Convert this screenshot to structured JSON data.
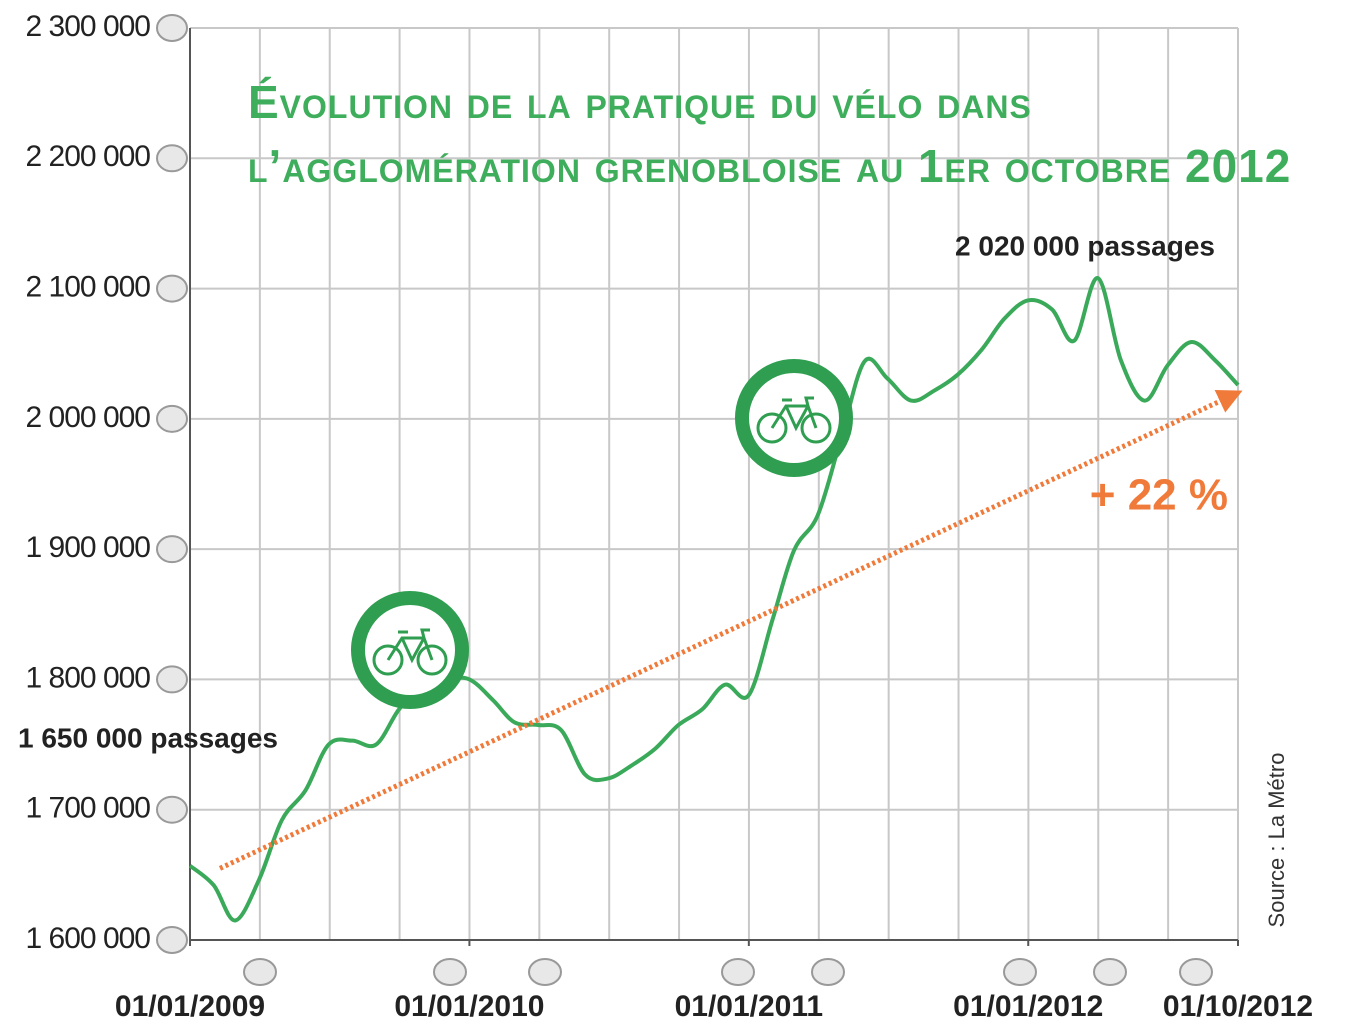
{
  "chart_data": {
    "type": "line",
    "title": "Évolution de la pratique du vélo dans l’agglomération grenobloise au 1er octobre 2012",
    "x": [
      "2009-01-01",
      "2009-02-01",
      "2009-03-01",
      "2009-04-01",
      "2009-05-01",
      "2009-06-01",
      "2009-07-01",
      "2009-08-01",
      "2009-09-01",
      "2009-10-01",
      "2009-11-01",
      "2009-12-01",
      "2010-01-01",
      "2010-02-01",
      "2010-03-01",
      "2010-04-01",
      "2010-05-01",
      "2010-06-01",
      "2010-07-01",
      "2010-08-01",
      "2010-09-01",
      "2010-10-01",
      "2010-11-01",
      "2010-12-01",
      "2011-01-01",
      "2011-02-01",
      "2011-03-01",
      "2011-04-01",
      "2011-05-01",
      "2011-06-01",
      "2011-07-01",
      "2011-08-01",
      "2011-09-01",
      "2011-10-01",
      "2011-11-01",
      "2011-12-01",
      "2012-01-01",
      "2012-02-01",
      "2012-03-01",
      "2012-04-01",
      "2012-05-01",
      "2012-06-01",
      "2012-07-01",
      "2012-08-01",
      "2012-09-01",
      "2012-10-01"
    ],
    "series": [
      {
        "color": "#3aaa5a",
        "values": [
          1657000,
          1642000,
          1615000,
          1646000,
          1692000,
          1715000,
          1750000,
          1753000,
          1750000,
          1777000,
          1796000,
          1800000,
          1800000,
          1784000,
          1767000,
          1765000,
          1761000,
          1727000,
          1724000,
          1734000,
          1747000,
          1765000,
          1777000,
          1796000,
          1788000,
          1846000,
          1899000,
          1926000,
          1984000,
          2044000,
          2031000,
          2014000,
          2022000,
          2034000,
          2053000,
          2077000,
          2091000,
          2084000,
          2060000,
          2108000,
          2045000,
          2014000,
          2041000,
          2059000,
          2045000,
          2026000
        ]
      }
    ],
    "trend": {
      "x": [
        "2009-01-01",
        "2012-10-01"
      ],
      "values": [
        1655000,
        2020000
      ],
      "color": "#f07a3a"
    },
    "xlim": [
      "2009-01-01",
      "2012-10-01"
    ],
    "xticks": [
      {
        "value": "2009-01-01",
        "label": "01/01/2009"
      },
      {
        "value": "2010-01-01",
        "label": "01/01/2010"
      },
      {
        "value": "2011-01-01",
        "label": "01/01/2011"
      },
      {
        "value": "2012-01-01",
        "label": "01/01/2012"
      },
      {
        "value": "2012-10-01",
        "label": "01/10/2012"
      }
    ],
    "ylim": [
      1600000,
      2300000
    ],
    "yticks": [
      {
        "value": 1600000,
        "label": "1 600 000"
      },
      {
        "value": 1700000,
        "label": "1 700 000"
      },
      {
        "value": 1800000,
        "label": "1 800 000"
      },
      {
        "value": 1900000,
        "label": "1 900 000"
      },
      {
        "value": 2000000,
        "label": "2 000 000"
      },
      {
        "value": 2100000,
        "label": "2 100 000"
      },
      {
        "value": 2200000,
        "label": "2 200 000"
      },
      {
        "value": 2300000,
        "label": "2 300 000"
      }
    ],
    "grid": true,
    "annotations": [
      "1 650 000 passages",
      "2 020 000 passages",
      "+ 22 %",
      "Source : La Métro"
    ]
  }
}
